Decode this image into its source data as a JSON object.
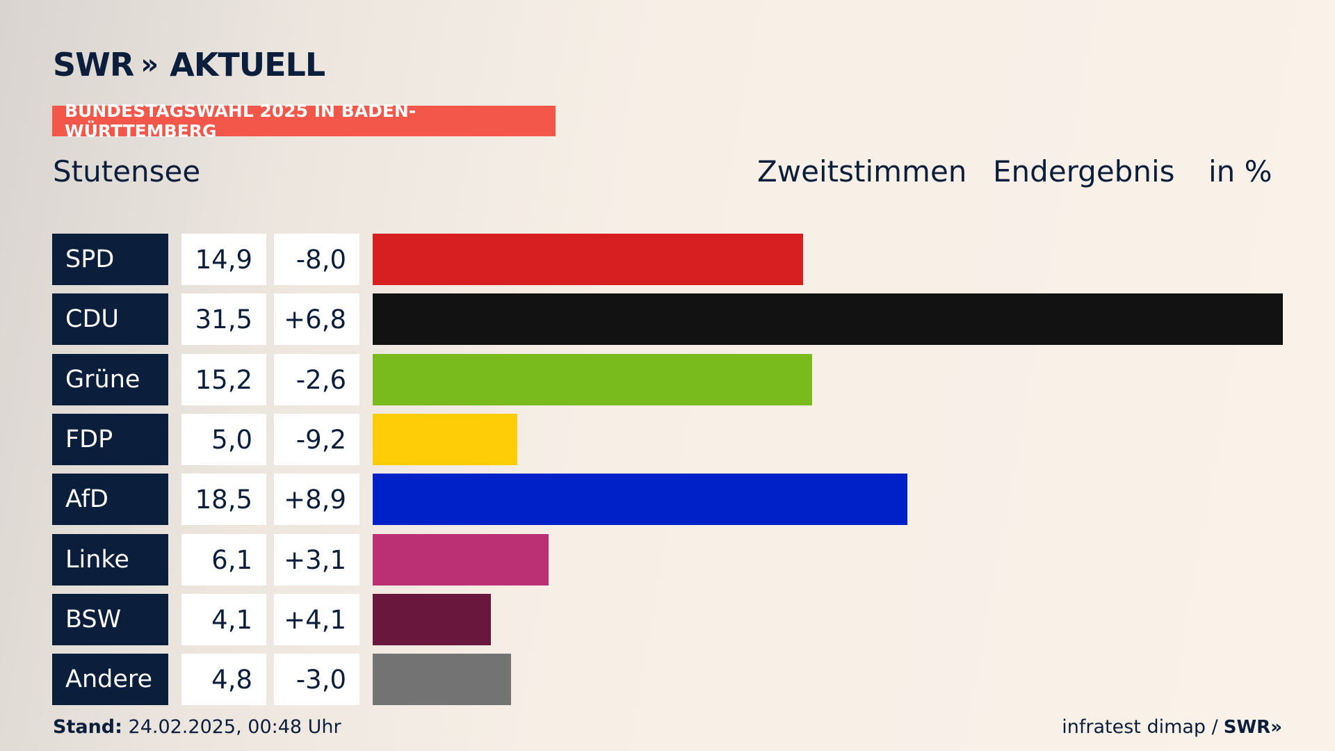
{
  "brand": {
    "name": "SWR",
    "chevrons": "»",
    "product": "AKTUELL"
  },
  "kicker": "BUNDESTAGSWAHL 2025 IN BADEN-WÜRTTEMBERG",
  "place": "Stutensee",
  "header": {
    "vote": "Zweitstimmen",
    "status": "Endergebnis",
    "unit": "in %"
  },
  "colors": {
    "navy": "#0b1e3c",
    "accent": "#f2574a"
  },
  "chart_data": {
    "type": "bar",
    "orientation": "horizontal",
    "unit": "in %",
    "xlim": [
      0,
      31.5
    ],
    "rows": [
      {
        "party": "SPD",
        "value": 14.9,
        "value_label": "14,9",
        "diff_label": "-8,0",
        "color": "#d71f21"
      },
      {
        "party": "CDU",
        "value": 31.5,
        "value_label": "31,5",
        "diff_label": "+6,8",
        "color": "#121212"
      },
      {
        "party": "Grüne",
        "value": 15.2,
        "value_label": "15,2",
        "diff_label": "-2,6",
        "color": "#79bb1d"
      },
      {
        "party": "FDP",
        "value": 5.0,
        "value_label": "5,0",
        "diff_label": "-9,2",
        "color": "#fecd08"
      },
      {
        "party": "AfD",
        "value": 18.5,
        "value_label": "18,5",
        "diff_label": "+8,9",
        "color": "#0021c8"
      },
      {
        "party": "Linke",
        "value": 6.1,
        "value_label": "6,1",
        "diff_label": "+3,1",
        "color": "#bb3075"
      },
      {
        "party": "BSW",
        "value": 4.1,
        "value_label": "4,1",
        "diff_label": "+4,1",
        "color": "#69173c"
      },
      {
        "party": "Andere",
        "value": 4.8,
        "value_label": "4,8",
        "diff_label": "-3,0",
        "color": "#737373"
      }
    ]
  },
  "footer": {
    "stand_label": "Stand:",
    "stand_value": "24.02.2025, 00:48 Uhr",
    "source": "infratest dimap /",
    "source_brand": "SWR",
    "source_chevrons": "»"
  }
}
